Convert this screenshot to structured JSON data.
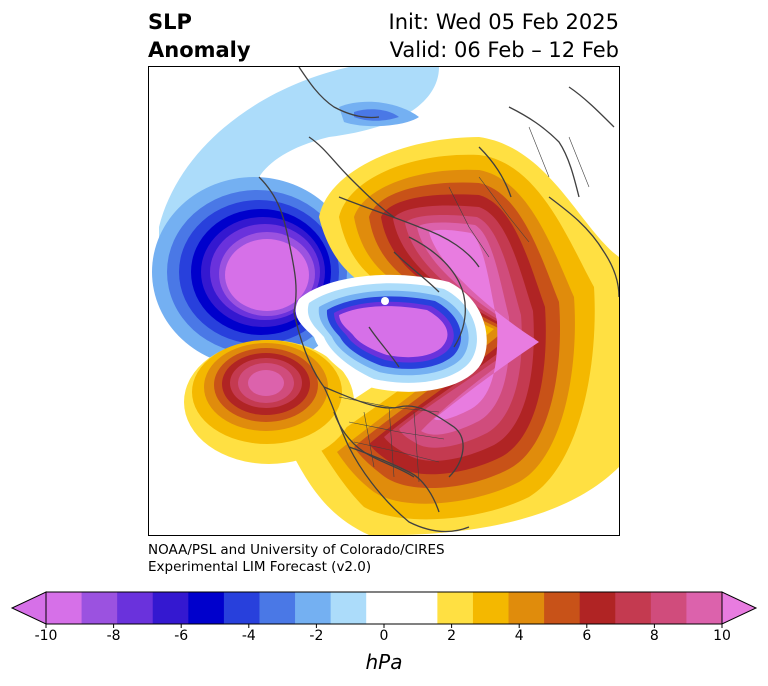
{
  "title": {
    "variable_line1": "SLP",
    "variable_line2": "Anomaly",
    "init": "Init: Wed 05 Feb 2025",
    "valid": "Valid: 06 Feb – 12 Feb"
  },
  "credit": {
    "line1": "NOAA/PSL and University of Colorado/CIRES",
    "line2": "Experimental LIM Forecast (v2.0)"
  },
  "colorbar": {
    "unit": "hPa",
    "ticks": [
      "-10",
      "-8",
      "-6",
      "-4",
      "-2",
      "0",
      "2",
      "4",
      "6",
      "8",
      "10"
    ],
    "min": -10,
    "max": 10,
    "extend": "both",
    "colors": [
      "#d670e8",
      "#9b52e0",
      "#6a32dc",
      "#3418d0",
      "#0000cc",
      "#2840dc",
      "#4a78e6",
      "#74b0f2",
      "#acdcfa",
      "#ffffff",
      "#ffffff",
      "#ffe042",
      "#f4b800",
      "#e08c0c",
      "#c85218",
      "#b02424",
      "#c43a50",
      "#d04c7c",
      "#dc62ac"
    ],
    "over_color": "#e87ce0",
    "under_color": "#d670e8"
  }
}
